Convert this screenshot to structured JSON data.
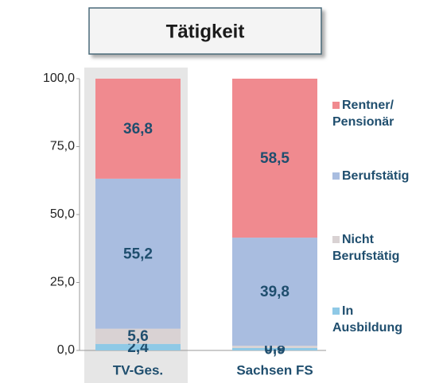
{
  "chart_data": {
    "type": "stacked_bar",
    "title": "Tätigkeit",
    "categories": [
      "TV-Ges.",
      "Sachsen FS"
    ],
    "series": [
      {
        "name": "In Ausbildung",
        "color": "#8fc9e6",
        "values": [
          2.4,
          0.9
        ],
        "value_labels": [
          "2,4",
          "0,9"
        ]
      },
      {
        "name": "Nicht Berufstätig",
        "color": "#d9d2d3",
        "values": [
          5.6,
          0.8
        ],
        "value_labels": [
          "5,6",
          "0,8"
        ]
      },
      {
        "name": "Berufstätig",
        "color": "#a9bde0",
        "values": [
          55.2,
          39.8
        ],
        "value_labels": [
          "55,2",
          "39,8"
        ]
      },
      {
        "name": "Rentner/ Pensionär",
        "color": "#f08a8f",
        "values": [
          36.8,
          58.5
        ],
        "value_labels": [
          "36,8",
          "58,5"
        ]
      }
    ],
    "ylim": [
      0,
      100
    ],
    "yticks": [
      {
        "value": 0,
        "label": "0,0"
      },
      {
        "value": 25,
        "label": "25,0"
      },
      {
        "value": 50,
        "label": "50,0"
      },
      {
        "value": 75,
        "label": "75,0"
      },
      {
        "value": 100,
        "label": "100,0"
      }
    ],
    "legend": "right",
    "grid": false
  }
}
